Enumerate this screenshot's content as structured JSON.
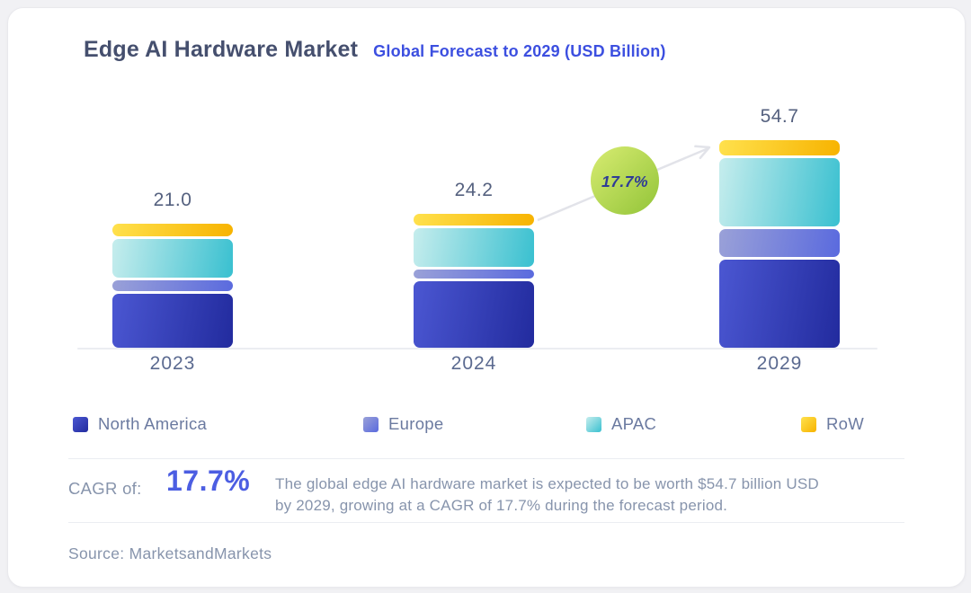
{
  "header": {
    "title": "Edge AI Hardware Market",
    "subtitle": "Global Forecast to 2029 (USD Billion)"
  },
  "chart_data": {
    "type": "bar",
    "stacked": true,
    "title": "Edge AI Hardware Market",
    "subtitle": "Global Forecast to 2029",
    "unit": "USD Billion",
    "categories": [
      "2023",
      "2024",
      "2029"
    ],
    "totals": [
      21.0,
      24.2,
      54.7
    ],
    "series": [
      {
        "name": "North America",
        "values": [
          9.7,
          12.8,
          24.1
        ],
        "gradient": [
          "#4b57d2",
          "#222b9e"
        ]
      },
      {
        "name": "Europe",
        "values": [
          2.0,
          1.7,
          7.6
        ],
        "gradient": [
          "#9aa1d8",
          "#5a6ade"
        ]
      },
      {
        "name": "APAC",
        "values": [
          7.0,
          7.4,
          18.7
        ],
        "gradient": [
          "#c6eded",
          "#39c0d0"
        ]
      },
      {
        "name": "RoW",
        "values": [
          2.3,
          2.3,
          4.3
        ],
        "gradient": [
          "#ffe14d",
          "#f7b300"
        ]
      }
    ],
    "segment_values_estimated_from_pixels": true,
    "legend_position": "bottom",
    "grid": false,
    "annotation": {
      "label": "17.7%",
      "shape": "circle-bubble-with-arrow",
      "bubble_gradient": [
        "#d8ec72",
        "#92c438"
      ],
      "text_color": "#2f3c96",
      "arrow_color": "#e2e3e9"
    }
  },
  "cagr": {
    "prefix": "CAGR of:",
    "value": "17.7%",
    "description_lines": [
      "The global edge AI hardware market is expected to be worth $54.7 billion USD",
      "by 2029, growing at a CAGR of 17.7% during the forecast period."
    ]
  },
  "source": {
    "text": "Source: MarketsandMarkets"
  },
  "colors": {
    "page_bg": "#f1f1f4",
    "card_bg": "#ffffff",
    "title": "#454f6e",
    "subtitle": "#3c4fe0",
    "value_label": "#55617f",
    "tick_label": "#5b6a90",
    "legend_label": "#6b7aa0",
    "cagr_value": "#4c5ee2",
    "muted_text": "#8794ac",
    "divider": "#ebedf2"
  }
}
